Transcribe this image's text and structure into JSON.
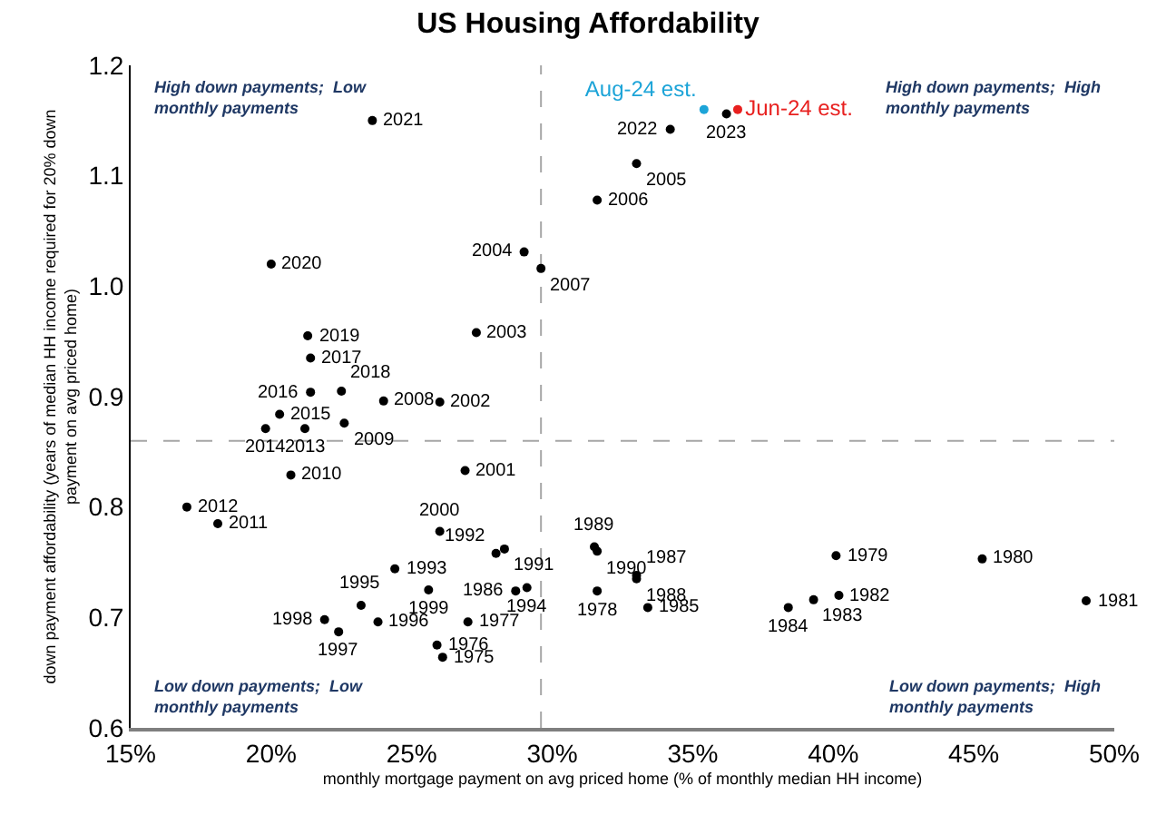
{
  "chart_data": {
    "type": "scatter",
    "title": "US Housing Affordability",
    "xlabel": "monthly mortgage payment on avg priced home (% of monthly median HH income)",
    "ylabel": "down payment affordability (years of median HH income required for 20% down\npayment on avg priced home)",
    "xlim": [
      15,
      50
    ],
    "ylim": [
      0.6,
      1.2
    ],
    "xticks": [
      {
        "value": 15,
        "label": "15%"
      },
      {
        "value": 20,
        "label": "20%"
      },
      {
        "value": 25,
        "label": "25%"
      },
      {
        "value": 30,
        "label": "30%"
      },
      {
        "value": 35,
        "label": "35%"
      },
      {
        "value": 40,
        "label": "40%"
      },
      {
        "value": 45,
        "label": "45%"
      },
      {
        "value": 50,
        "label": "50%"
      }
    ],
    "yticks": [
      0.6,
      0.7,
      0.8,
      0.9,
      {
        "value": 1.0,
        "label": "1.0"
      },
      1.1,
      1.2
    ],
    "grid": false,
    "legend": false,
    "marker": "circle",
    "series": [
      {
        "color": "#000000",
        "x": [
          23.6,
          20.0,
          21.3,
          21.4,
          21.4,
          22.5,
          24.0,
          26.0,
          20.3,
          19.8,
          21.2,
          22.6,
          20.7,
          17.0,
          18.1,
          29.0,
          29.6,
          27.3,
          26.9,
          26.0,
          28.0,
          28.3,
          24.4,
          25.6,
          28.7,
          29.1,
          23.2,
          21.9,
          23.8,
          22.4,
          27.0,
          25.9,
          26.1,
          33.0,
          31.6,
          34.2,
          36.2,
          31.5,
          31.6,
          33.0,
          33.0,
          31.6,
          33.4,
          38.4,
          39.3,
          40.2,
          40.1,
          45.3,
          49.0
        ],
        "values": [
          1.15,
          1.02,
          0.955,
          0.935,
          0.904,
          0.905,
          0.896,
          0.895,
          0.884,
          0.871,
          0.871,
          0.876,
          0.829,
          0.8,
          0.785,
          1.031,
          1.016,
          0.958,
          0.833,
          0.778,
          0.758,
          0.762,
          0.744,
          0.725,
          0.724,
          0.727,
          0.711,
          0.698,
          0.696,
          0.687,
          0.696,
          0.675,
          0.664,
          1.111,
          1.078,
          1.142,
          1.156,
          0.764,
          0.76,
          0.738,
          0.735,
          0.724,
          0.709,
          0.709,
          0.716,
          0.72,
          0.756,
          0.753,
          0.715
        ]
      },
      {
        "name": "Aug-24 est.",
        "color": "#1ca4d8",
        "x": [
          35.4
        ],
        "values": [
          1.16
        ]
      },
      {
        "name": "Jun-24 est.",
        "color": "#e8201f",
        "x": [
          36.6
        ],
        "values": [
          1.16
        ]
      }
    ],
    "annotations": [
      "High down payments;  Low\nmonthly payments",
      "High down payments;  High\nmonthly payments",
      "Low down payments;  Low\nmonthly payments",
      "Low down payments;  High\nmonthly payments",
      {
        "text": "2021",
        "x": 23.6,
        "y": 1.15
      },
      {
        "text": "2020",
        "x": 20.0,
        "y": 1.02
      },
      {
        "text": "2019",
        "x": 21.3,
        "y": 0.955
      },
      {
        "text": "2017",
        "x": 21.4,
        "y": 0.935
      },
      {
        "text": "2016",
        "x": 21.4,
        "y": 0.904
      },
      {
        "text": "2018",
        "x": 22.5,
        "y": 0.905
      },
      {
        "text": "2008",
        "x": 24.0,
        "y": 0.896
      },
      {
        "text": "2002",
        "x": 26.0,
        "y": 0.895
      },
      {
        "text": "2015",
        "x": 20.3,
        "y": 0.884
      },
      {
        "text": "2014",
        "x": 19.8,
        "y": 0.871
      },
      {
        "text": "2013",
        "x": 21.2,
        "y": 0.871
      },
      {
        "text": "2009",
        "x": 22.6,
        "y": 0.876
      },
      {
        "text": "2010",
        "x": 20.7,
        "y": 0.829
      },
      {
        "text": "2012",
        "x": 17.0,
        "y": 0.8
      },
      {
        "text": "2011",
        "x": 18.1,
        "y": 0.785
      },
      {
        "text": "2004",
        "x": 29.0,
        "y": 1.031
      },
      {
        "text": "2007",
        "x": 29.6,
        "y": 1.016
      },
      {
        "text": "2003",
        "x": 27.3,
        "y": 0.958
      },
      {
        "text": "2001",
        "x": 26.9,
        "y": 0.833
      },
      {
        "text": "2000",
        "x": 26.0,
        "y": 0.778
      },
      {
        "text": "1992",
        "x": 28.0,
        "y": 0.758
      },
      {
        "text": "1991",
        "x": 28.3,
        "y": 0.762
      },
      {
        "text": "1993",
        "x": 24.4,
        "y": 0.744
      },
      {
        "text": "1999",
        "x": 25.6,
        "y": 0.725
      },
      {
        "text": "1986",
        "x": 28.7,
        "y": 0.724
      },
      {
        "text": "1994",
        "x": 29.1,
        "y": 0.727
      },
      {
        "text": "1995",
        "x": 23.2,
        "y": 0.711
      },
      {
        "text": "1998",
        "x": 21.9,
        "y": 0.698
      },
      {
        "text": "1996",
        "x": 23.8,
        "y": 0.696
      },
      {
        "text": "1997",
        "x": 22.4,
        "y": 0.687
      },
      {
        "text": "1977",
        "x": 27.0,
        "y": 0.696
      },
      {
        "text": "1976",
        "x": 25.9,
        "y": 0.675
      },
      {
        "text": "1975",
        "x": 26.1,
        "y": 0.664
      },
      {
        "text": "2005",
        "x": 33.0,
        "y": 1.111
      },
      {
        "text": "2006",
        "x": 31.6,
        "y": 1.078
      },
      {
        "text": "2022",
        "x": 34.2,
        "y": 1.142
      },
      {
        "text": "2023",
        "x": 36.2,
        "y": 1.156
      },
      {
        "text": "1989",
        "x": 31.5,
        "y": 0.764
      },
      {
        "text": "1990",
        "x": 31.6,
        "y": 0.76
      },
      {
        "text": "1987",
        "x": 33.0,
        "y": 0.738
      },
      {
        "text": "1988",
        "x": 33.0,
        "y": 0.735
      },
      {
        "text": "1978",
        "x": 31.6,
        "y": 0.724
      },
      {
        "text": "1985",
        "x": 33.4,
        "y": 0.709
      },
      {
        "text": "1984",
        "x": 38.4,
        "y": 0.709
      },
      {
        "text": "1983",
        "x": 39.3,
        "y": 0.716
      },
      {
        "text": "1982",
        "x": 40.2,
        "y": 0.72
      },
      {
        "text": "1979",
        "x": 40.1,
        "y": 0.756
      },
      {
        "text": "1980",
        "x": 45.3,
        "y": 0.753
      },
      {
        "text": "1981",
        "x": 49.0,
        "y": 0.715
      }
    ],
    "ref_lines": [
      {
        "axis": "x",
        "value": 29.6,
        "color": "#a6a6a6",
        "line_style": "dashed"
      },
      {
        "axis": "y",
        "value": 0.86,
        "color": "#a6a6a6",
        "line_style": "dashed"
      }
    ]
  }
}
